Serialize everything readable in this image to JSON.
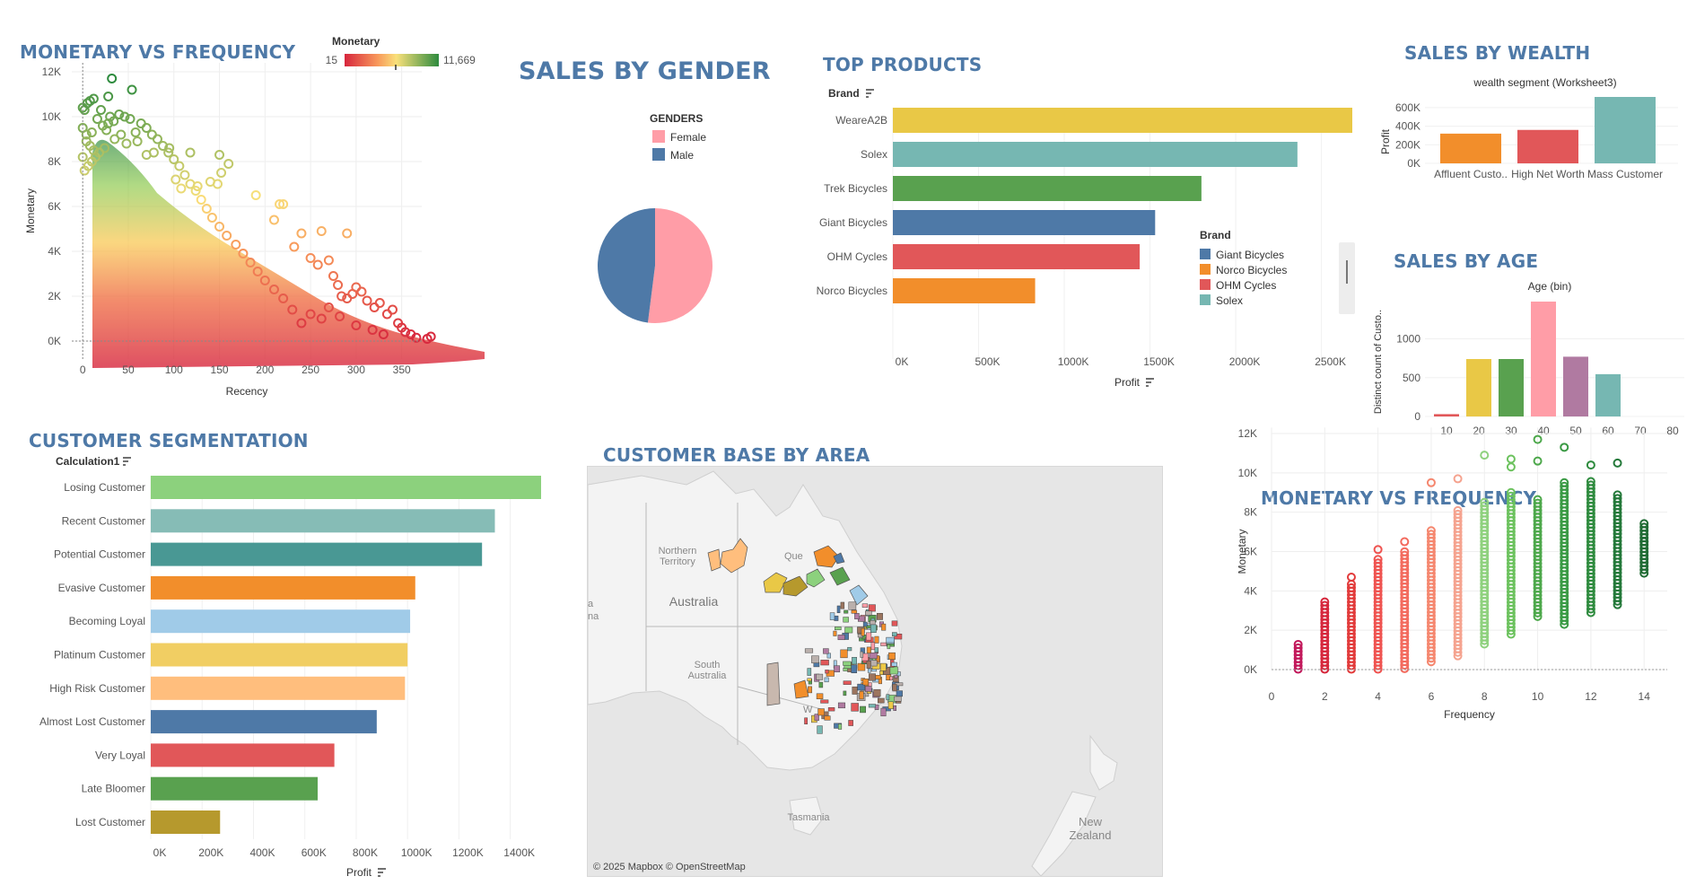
{
  "titles": {
    "mvf_top": "MONETARY VS FREQUENCY",
    "gender": "SALES BY GENDER",
    "products": "TOP PRODUCTS",
    "wealth": "SALES BY WEALTH",
    "age": "SALES BY AGE",
    "segmentation": "CUSTOMER SEGMENTATION",
    "area": "CUSTOMER BASE BY AREA",
    "mvf_bottom": "MONETARY VS FREQUENCY"
  },
  "colors": {
    "title": "#4e79a7",
    "female": "#ff9da7",
    "male": "#4e79a7",
    "gradient_low": "#d7263d",
    "gradient_mid": "#f9c74f",
    "gradient_high": "#2e8b3e"
  },
  "rfm_legend": {
    "label": "Monetary",
    "min": "15",
    "max": "11,669"
  },
  "map": {
    "credit": "© 2025 Mapbox © OpenStreetMap",
    "labels": {
      "northern_territory": "Northern Territory",
      "australia": "Australia",
      "south_australia": "South Australia",
      "queensland": "Que",
      "tasmania": "Tasmania",
      "new_zealand": "New Zealand",
      "edge_a": "a",
      "edge_na": "na",
      "wa": "W"
    }
  },
  "chart_data": [
    {
      "id": "monetary_vs_recency",
      "type": "scatter",
      "title": "MONETARY VS FREQUENCY",
      "xlabel": "Recency",
      "ylabel": "Monetary",
      "xlim": [
        -12,
        372
      ],
      "ylim": [
        -800,
        12400
      ],
      "x_ticks": [
        0,
        50,
        100,
        150,
        200,
        250,
        300,
        350
      ],
      "x_tick_labels": [
        "0",
        "50",
        "100",
        "150",
        "200",
        "250",
        "300",
        "350"
      ],
      "y_ticks": [
        0,
        2000,
        4000,
        6000,
        8000,
        10000,
        12000
      ],
      "y_tick_labels": [
        "0K",
        "2K",
        "4K",
        "6K",
        "8K",
        "10K",
        "12K"
      ],
      "color_by": "Monetary",
      "color_range": [
        15,
        11669
      ],
      "points": [
        [
          0,
          10400
        ],
        [
          2,
          10300
        ],
        [
          5,
          10600
        ],
        [
          8,
          10700
        ],
        [
          12,
          10800
        ],
        [
          16,
          9900
        ],
        [
          20,
          10300
        ],
        [
          28,
          10900
        ],
        [
          32,
          11700
        ],
        [
          54,
          11200
        ],
        [
          30,
          10000
        ],
        [
          0,
          9500
        ],
        [
          4,
          9200
        ],
        [
          10,
          9300
        ],
        [
          22,
          9600
        ],
        [
          26,
          9400
        ],
        [
          35,
          9000
        ],
        [
          42,
          9200
        ],
        [
          48,
          8800
        ],
        [
          60,
          8900
        ],
        [
          70,
          8300
        ],
        [
          78,
          8400
        ],
        [
          95,
          8600
        ],
        [
          118,
          8400
        ],
        [
          150,
          8300
        ],
        [
          160,
          7900
        ],
        [
          102,
          7200
        ],
        [
          108,
          6800
        ],
        [
          126,
          6900
        ],
        [
          140,
          7100
        ],
        [
          148,
          7000
        ],
        [
          152,
          7500
        ],
        [
          190,
          6500
        ],
        [
          220,
          6100
        ],
        [
          240,
          4800
        ],
        [
          262,
          4900
        ],
        [
          290,
          4800
        ],
        [
          210,
          5400
        ],
        [
          216,
          6100
        ],
        [
          232,
          4200
        ],
        [
          250,
          3700
        ],
        [
          258,
          3400
        ],
        [
          270,
          3600
        ],
        [
          275,
          2900
        ],
        [
          280,
          2500
        ],
        [
          284,
          2000
        ],
        [
          290,
          1900
        ],
        [
          296,
          2100
        ],
        [
          300,
          2400
        ],
        [
          306,
          2200
        ],
        [
          312,
          1800
        ],
        [
          320,
          1500
        ],
        [
          326,
          1700
        ],
        [
          334,
          1200
        ],
        [
          340,
          1400
        ],
        [
          346,
          800
        ],
        [
          350,
          600
        ],
        [
          354,
          400
        ],
        [
          360,
          300
        ],
        [
          366,
          150
        ],
        [
          378,
          100
        ],
        [
          382,
          200
        ],
        [
          330,
          300
        ],
        [
          318,
          500
        ],
        [
          300,
          700
        ],
        [
          282,
          1100
        ],
        [
          270,
          1500
        ],
        [
          262,
          1000
        ],
        [
          250,
          1200
        ],
        [
          240,
          800
        ],
        [
          230,
          1400
        ],
        [
          220,
          1900
        ],
        [
          210,
          2300
        ],
        [
          200,
          2700
        ],
        [
          192,
          3100
        ],
        [
          184,
          3500
        ],
        [
          176,
          3900
        ],
        [
          168,
          4300
        ],
        [
          158,
          4700
        ],
        [
          150,
          5100
        ],
        [
          142,
          5500
        ],
        [
          136,
          5900
        ],
        [
          130,
          6300
        ],
        [
          124,
          6700
        ],
        [
          118,
          7000
        ],
        [
          112,
          7400
        ],
        [
          106,
          7800
        ],
        [
          100,
          8100
        ],
        [
          94,
          8400
        ],
        [
          88,
          8700
        ],
        [
          82,
          9000
        ],
        [
          76,
          9200
        ],
        [
          70,
          9500
        ],
        [
          64,
          9700
        ],
        [
          58,
          9300
        ],
        [
          52,
          9900
        ],
        [
          46,
          10000
        ],
        [
          40,
          10100
        ],
        [
          34,
          9800
        ],
        [
          28,
          9700
        ],
        [
          24,
          8600
        ],
        [
          18,
          8400
        ],
        [
          14,
          8200
        ],
        [
          10,
          8000
        ],
        [
          6,
          7800
        ],
        [
          2,
          7600
        ],
        [
          0,
          8200
        ],
        [
          4,
          8900
        ],
        [
          8,
          8700
        ],
        [
          12,
          8500
        ]
      ]
    },
    {
      "id": "sales_by_gender",
      "type": "pie",
      "title": "SALES BY GENDER",
      "legend_title": "GENDERS",
      "categories": [
        "Female",
        "Male"
      ],
      "values": [
        52,
        48
      ],
      "legend_position": "top"
    },
    {
      "id": "top_products",
      "type": "bar",
      "orientation": "horizontal",
      "title": "TOP PRODUCTS",
      "category_header": "Brand",
      "xlabel": "Profit",
      "categories": [
        "WeareA2B",
        "Solex",
        "Trek Bicycles",
        "Giant Bicycles",
        "OHM Cycles",
        "Norco Bicycles"
      ],
      "values": [
        2680000,
        2360000,
        1800000,
        1530000,
        1440000,
        830000
      ],
      "bar_colors": [
        "#e9c846",
        "#76b7b2",
        "#59a14f",
        "#4e79a7",
        "#e15759",
        "#f28e2b"
      ],
      "xlim": [
        0,
        2680000
      ],
      "x_ticks": [
        0,
        500000,
        1000000,
        1500000,
        2000000,
        2500000
      ],
      "x_tick_labels": [
        "0K",
        "500K",
        "1000K",
        "1500K",
        "2000K",
        "2500K"
      ],
      "legend_title": "Brand",
      "legend_entries": [
        "Giant Bicycles",
        "Norco Bicycles",
        "OHM Cycles",
        "Solex"
      ],
      "legend_colors": [
        "#4e79a7",
        "#f28e2b",
        "#e15759",
        "#76b7b2"
      ],
      "legend_position": "right"
    },
    {
      "id": "sales_by_wealth",
      "type": "bar",
      "title": "SALES BY WEALTH",
      "subtitle": "wealth segment (Worksheet3)",
      "ylabel": "Profit",
      "categories": [
        "Affluent Custo..",
        "High Net Worth",
        "Mass Customer"
      ],
      "values": [
        320000,
        360000,
        715000
      ],
      "bar_colors": [
        "#f28e2b",
        "#e15759",
        "#76b7b2"
      ],
      "ylim": [
        0,
        715000
      ],
      "y_ticks": [
        0,
        200000,
        400000,
        600000
      ],
      "y_tick_labels": [
        "0K",
        "200K",
        "400K",
        "600K"
      ]
    },
    {
      "id": "sales_by_age",
      "type": "bar",
      "title": "SALES BY AGE",
      "subtitle": "Age (bin)",
      "ylabel": "Distinct count of Custo..",
      "categories": [
        "10",
        "20",
        "30",
        "40",
        "50",
        "60",
        "70",
        "80"
      ],
      "values": [
        30,
        740,
        740,
        1480,
        770,
        545,
        0,
        0
      ],
      "bar_colors": [
        "#e15759",
        "#e9c846",
        "#59a14f",
        "#ff9da7",
        "#b07aa1",
        "#76b7b2",
        "#9c755f",
        "#bab0ac"
      ],
      "ylim": [
        0,
        1480
      ],
      "y_ticks": [
        0,
        500,
        1000
      ],
      "y_tick_labels": [
        "0",
        "500",
        "1000"
      ]
    },
    {
      "id": "customer_segmentation",
      "type": "bar",
      "orientation": "horizontal",
      "title": "CUSTOMER SEGMENTATION",
      "category_header": "Calculation1",
      "xlabel": "Profit",
      "categories": [
        "Losing Customer",
        "Recent Customer",
        "Potential Customer",
        "Evasive Customer",
        "Becoming Loyal",
        "Platinum Customer",
        "High Risk Customer",
        "Almost Lost Customer",
        "Very Loyal",
        "Late Bloomer",
        "Lost Customer"
      ],
      "values": [
        1520000,
        1340000,
        1290000,
        1030000,
        1010000,
        1000000,
        990000,
        880000,
        715000,
        650000,
        270000
      ],
      "bar_colors": [
        "#8cd17d",
        "#86bcb6",
        "#499894",
        "#f28e2b",
        "#a0cbe8",
        "#f1ce63",
        "#ffbe7d",
        "#4e79a7",
        "#e15759",
        "#59a14f",
        "#b6992d"
      ],
      "xlim": [
        0,
        1520000
      ],
      "x_ticks": [
        0,
        200000,
        400000,
        600000,
        800000,
        1000000,
        1200000,
        1400000
      ],
      "x_tick_labels": [
        "0K",
        "200K",
        "400K",
        "600K",
        "800K",
        "1000K",
        "1200K",
        "1400K"
      ]
    },
    {
      "id": "monetary_vs_frequency",
      "type": "scatter",
      "title": "MONETARY VS FREQUENCY",
      "xlabel": "Frequency",
      "ylabel": "Monetary",
      "xlim": [
        0,
        14.6
      ],
      "ylim": [
        0,
        12300
      ],
      "x_ticks": [
        0,
        2,
        4,
        6,
        8,
        10,
        12,
        14
      ],
      "x_tick_labels": [
        "0",
        "2",
        "4",
        "6",
        "8",
        "10",
        "12",
        "14"
      ],
      "y_ticks": [
        0,
        2000,
        4000,
        6000,
        8000,
        10000,
        12000
      ],
      "y_tick_labels": [
        "0K",
        "2K",
        "4K",
        "6K",
        "8K",
        "10K",
        "12K"
      ],
      "columns": [
        {
          "x": 1,
          "min": 20,
          "max": 1400,
          "extra": [],
          "color": "#c2185b"
        },
        {
          "x": 2,
          "min": 20,
          "max": 3500,
          "extra": [],
          "color": "#d6273c"
        },
        {
          "x": 3,
          "min": 20,
          "max": 4400,
          "extra": [
            4700
          ],
          "color": "#e23b3b"
        },
        {
          "x": 4,
          "min": 20,
          "max": 5700,
          "extra": [
            6100
          ],
          "color": "#ef5350"
        },
        {
          "x": 5,
          "min": 50,
          "max": 6000,
          "extra": [
            6500
          ],
          "color": "#f36b5e"
        },
        {
          "x": 6,
          "min": 400,
          "max": 7200,
          "extra": [
            9500
          ],
          "color": "#f5876f"
        },
        {
          "x": 7,
          "min": 700,
          "max": 8100,
          "extra": [
            9700
          ],
          "color": "#f5a38f"
        },
        {
          "x": 8,
          "min": 1300,
          "max": 8600,
          "extra": [
            10900
          ],
          "color": "#8fd17e"
        },
        {
          "x": 9,
          "min": 1800,
          "max": 9000,
          "extra": [
            10300,
            10700
          ],
          "color": "#6cc25e"
        },
        {
          "x": 10,
          "min": 2700,
          "max": 8700,
          "extra": [
            10600,
            11700
          ],
          "color": "#4da84b"
        },
        {
          "x": 11,
          "min": 2300,
          "max": 9500,
          "extra": [
            11300
          ],
          "color": "#3a9a44"
        },
        {
          "x": 12,
          "min": 2900,
          "max": 9600,
          "extra": [
            10400
          ],
          "color": "#2e8b3e"
        },
        {
          "x": 13,
          "min": 3300,
          "max": 9000,
          "extra": [
            10500
          ],
          "color": "#24793a"
        },
        {
          "x": 14,
          "min": 4900,
          "max": 7500,
          "extra": [
            6500
          ],
          "color": "#1f6b33"
        }
      ]
    }
  ]
}
